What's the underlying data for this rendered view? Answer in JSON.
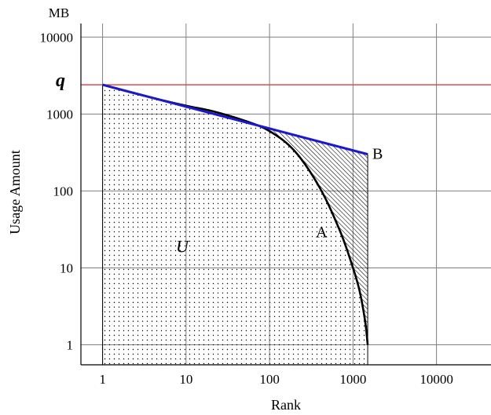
{
  "chart_data": {
    "type": "line",
    "scale": {
      "x": "log",
      "y": "log"
    },
    "x_ticks": [
      1,
      10,
      100,
      1000,
      10000
    ],
    "y_ticks": [
      1,
      10,
      100,
      1000,
      10000
    ],
    "xlim": [
      0.55,
      45000
    ],
    "ylim": [
      0.55,
      15000
    ],
    "xlabel": "Rank",
    "ylabel": "Usage Amount",
    "y_unit": "MB",
    "grid": true,
    "colors": {
      "q_line": "#d44040",
      "line_B": "#1a1acc",
      "curve_A": "#000000",
      "grid": "#808080"
    },
    "q": {
      "label": "q",
      "y": 2400
    },
    "series": [
      {
        "name": "B",
        "x": [
          1,
          1500
        ],
        "y": [
          2400,
          300
        ]
      },
      {
        "name": "A",
        "x": [
          1,
          3,
          10,
          20,
          50,
          100,
          200,
          400,
          700,
          1000,
          1200,
          1400,
          1500
        ],
        "y": [
          2400,
          1750,
          1280,
          1100,
          820,
          600,
          330,
          110,
          30,
          10,
          5,
          2,
          1
        ]
      }
    ],
    "regions": [
      {
        "label": "U",
        "fill": "dotted",
        "under": "A",
        "x_from": 1,
        "x_to": 1500
      },
      {
        "fill": "hatched",
        "between": [
          "B",
          "A"
        ]
      }
    ]
  }
}
